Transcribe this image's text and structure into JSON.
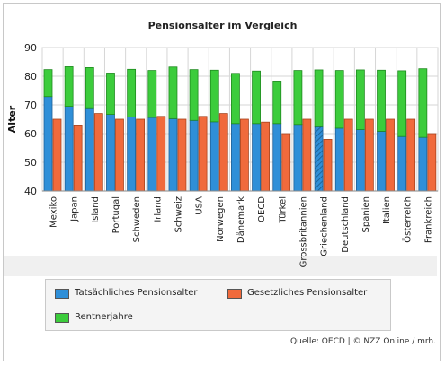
{
  "title": "Pensionsalter im Vergleich",
  "source": "Quelle: OECD | © NZZ Online / mrh.",
  "chart_data": {
    "type": "bar",
    "title": "Pensionsalter im Vergleich",
    "ylabel": "Alter",
    "xlabel": "",
    "ylim": [
      40,
      90
    ],
    "yticks": [
      40,
      50,
      60,
      70,
      80,
      90
    ],
    "grid": true,
    "legend_placement": "bottom",
    "categories": [
      "Mexiko",
      "Japan",
      "Island",
      "Portugal",
      "Schweden",
      "Irland",
      "Schweiz",
      "USA",
      "Norwegen",
      "Dänemark",
      "OECD",
      "Türkei",
      "Grossbritannien",
      "Griechenland",
      "Deutschland",
      "Spanien",
      "Italien",
      "Österreich",
      "Frankreich"
    ],
    "series": [
      {
        "name": "Tatsächliches Pensionsalter",
        "color": "#2f8fd8",
        "stack": "a",
        "values": [
          72.9,
          69.5,
          69.0,
          66.7,
          65.8,
          65.6,
          65.2,
          64.6,
          64.1,
          63.5,
          63.5,
          63.5,
          63.2,
          62.4,
          61.9,
          61.4,
          60.8,
          59.0,
          58.7
        ]
      },
      {
        "name": "Rentnerjahre",
        "color": "#3ccc3c",
        "stack": "a",
        "values": [
          9.4,
          13.8,
          14.0,
          14.4,
          16.6,
          16.4,
          18.0,
          17.7,
          18.0,
          17.5,
          18.3,
          14.8,
          18.8,
          19.8,
          20.1,
          20.8,
          21.3,
          22.9,
          23.9
        ]
      },
      {
        "name": "Gesetzliches Pensionsalter",
        "color": "#f06a3c",
        "stack": "b",
        "values": [
          65,
          63,
          67,
          65,
          65,
          66,
          65,
          66,
          67,
          65,
          64,
          60,
          65,
          58,
          65,
          65,
          65,
          65,
          60
        ]
      }
    ],
    "hatched_categories": [
      "Griechenland"
    ]
  },
  "colors": {
    "actual": "#2f8fd8",
    "legal": "#f06a3c",
    "retire": "#3ccc3c",
    "grid": "#d6d6d6"
  }
}
